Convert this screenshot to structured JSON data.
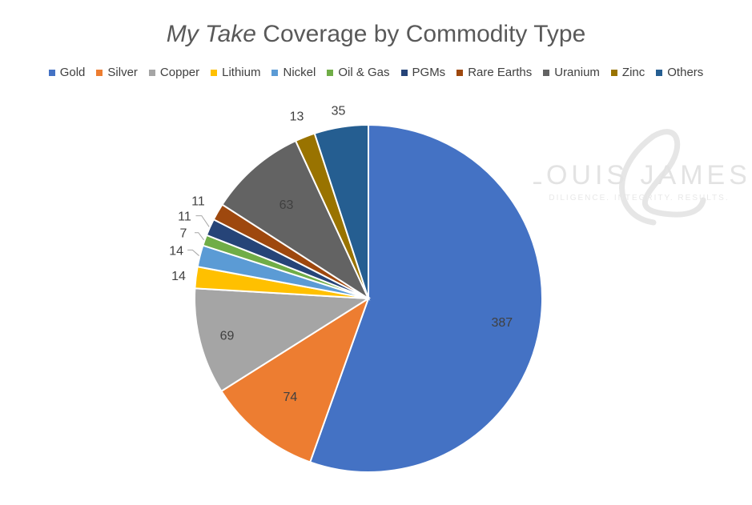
{
  "chart_data": {
    "type": "pie",
    "title_italic": "My Take",
    "title_rest": " Coverage by Commodity Type",
    "categories": [
      "Gold",
      "Silver",
      "Copper",
      "Lithium",
      "Nickel",
      "Oil & Gas",
      "PGMs",
      "Rare Earths",
      "Uranium",
      "Zinc",
      "Others"
    ],
    "values": [
      387,
      74,
      69,
      14,
      14,
      7,
      11,
      11,
      63,
      13,
      35
    ],
    "colors": [
      "#4472C4",
      "#ED7D31",
      "#A5A5A5",
      "#FFC000",
      "#5B9BD5",
      "#70AD47",
      "#264478",
      "#9E480E",
      "#636363",
      "#997300",
      "#255E91"
    ],
    "legend_position": "top",
    "start_angle_deg": 0,
    "direction": "clockwise"
  },
  "watermark": {
    "brand_name": "LOUIS JAMES",
    "tagline": "DILIGENCE. INTEGRITY. RESULTS."
  }
}
